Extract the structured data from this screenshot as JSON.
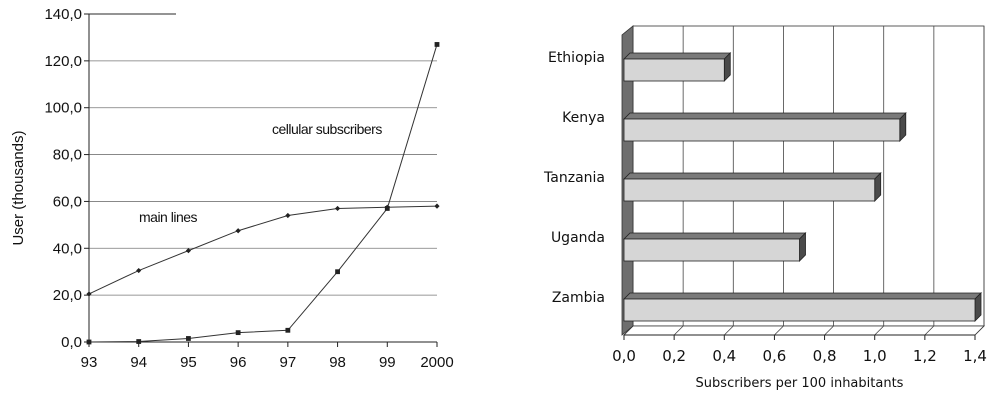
{
  "chart_data": [
    {
      "type": "line",
      "title": "",
      "ylabel": "User (thousands)",
      "xlabel": "",
      "x": [
        "93",
        "94",
        "95",
        "96",
        "97",
        "98",
        "99",
        "2000"
      ],
      "yticks": [
        "0,0",
        "20,0",
        "40,0",
        "60,0",
        "80,0",
        "100,0",
        "120,0",
        "140,0"
      ],
      "ylim": [
        0,
        140
      ],
      "grid": true,
      "series": [
        {
          "name": "main lines",
          "values": [
            20.5,
            30.5,
            39.0,
            47.5,
            54.0,
            57.0,
            57.5,
            58.0
          ]
        },
        {
          "name": "cellular subscribers",
          "values": [
            0.0,
            0.2,
            1.5,
            4.0,
            5.0,
            30.0,
            57.0,
            127.0
          ]
        }
      ]
    },
    {
      "type": "bar",
      "orientation": "horizontal",
      "style": "3d",
      "title": "",
      "xlabel": "Subscribers per 100 inhabitants",
      "ylabel": "",
      "categories": [
        "Ethiopia",
        "Kenya",
        "Tanzania",
        "Uganda",
        "Zambia"
      ],
      "values": [
        0.4,
        1.1,
        1.0,
        0.7,
        1.4
      ],
      "xticks": [
        "0,0",
        "0,2",
        "0,4",
        "0,6",
        "0,8",
        "1,0",
        "1,2",
        "1,4"
      ],
      "xlim": [
        0,
        1.4
      ],
      "grid": true
    }
  ]
}
